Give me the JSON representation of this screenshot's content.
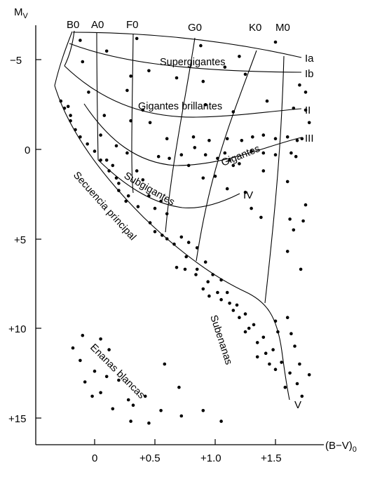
{
  "diagram": {
    "y_axis_title": "M",
    "y_axis_title_sub": "V",
    "x_axis_title": "(B−V)",
    "x_axis_title_sub": "0",
    "y_tick_labels": [
      "−5",
      "0",
      "+5",
      "+10",
      "+15"
    ],
    "x_tick_labels": [
      "0",
      "+0.5",
      "+1.0",
      "+1.5"
    ],
    "spectral_types": [
      "B0",
      "A0",
      "F0",
      "G0",
      "K0",
      "M0"
    ],
    "luminosity_classes": [
      "Ia",
      "Ib",
      "II",
      "III",
      "IV",
      "V"
    ],
    "regions": {
      "supergiants": "Supergigantes",
      "bright_giants": "Gigantes brillantes",
      "giants": "Gigantes",
      "subgiants": "Subgigantes",
      "main_sequence": "Secuencia principal",
      "subdwarfs": "Subenanas",
      "white_dwarfs": "Enanas blancas"
    }
  },
  "chart_data": {
    "type": "scatter",
    "xlabel": "(B−V)0",
    "ylabel": "Mv",
    "xlim": [
      -0.35,
      1.85
    ],
    "ylim": [
      -7,
      16.5
    ],
    "y_inverted": true,
    "grid": false,
    "series": [
      {
        "values": [
          [
            -0.12,
            -6.1
          ],
          [
            0.35,
            -6.2
          ],
          [
            0.88,
            -5.8
          ],
          [
            1.2,
            -5.2
          ],
          [
            1.5,
            -6.0
          ],
          [
            0.1,
            -5.5
          ],
          [
            0.3,
            -4.1
          ],
          [
            -0.1,
            -4.9
          ],
          [
            0.45,
            -4.4
          ],
          [
            0.68,
            -4.0
          ],
          [
            1.08,
            -4.6
          ],
          [
            0.9,
            -3.8
          ],
          [
            1.25,
            -4.2
          ],
          [
            1.7,
            -3.6
          ],
          [
            1.75,
            -3.2
          ],
          [
            1.75,
            -2.2
          ],
          [
            1.78,
            -1.5
          ],
          [
            -0.05,
            -3.2
          ],
          [
            0.27,
            -3.3
          ],
          [
            0.4,
            -2.2
          ],
          [
            0.92,
            -2.5
          ],
          [
            1.15,
            -2.1
          ],
          [
            1.43,
            -2.7
          ],
          [
            1.65,
            -2.3
          ],
          [
            -0.22,
            -2.4
          ],
          [
            -0.2,
            -1.6
          ],
          [
            0.08,
            -1.9
          ],
          [
            0.3,
            -1.6
          ],
          [
            0.46,
            -1.5
          ],
          [
            0.05,
            -0.8
          ],
          [
            0.18,
            -0.2
          ],
          [
            0.27,
            0.2
          ],
          [
            0.6,
            -0.6
          ],
          [
            0.82,
            -0.7
          ],
          [
            0.95,
            -0.5
          ],
          [
            1.1,
            -0.6
          ],
          [
            1.22,
            -0.5
          ],
          [
            1.31,
            -0.7
          ],
          [
            1.4,
            -0.8
          ],
          [
            1.5,
            -0.6
          ],
          [
            1.6,
            -0.7
          ],
          [
            1.68,
            -0.5
          ],
          [
            1.72,
            -0.6
          ],
          [
            0.83,
            -0.1
          ],
          [
            0.92,
            0.3
          ],
          [
            1.02,
            0.5
          ],
          [
            1.08,
            0.2
          ],
          [
            1.12,
            0.6
          ],
          [
            1.15,
            0.9
          ],
          [
            1.2,
            0.8
          ],
          [
            1.3,
            0.1
          ],
          [
            1.4,
            0.2
          ],
          [
            1.5,
            0.3
          ],
          [
            1.63,
            0.2
          ],
          [
            1.67,
            0.4
          ],
          [
            0.53,
            0.4
          ],
          [
            0.62,
            0.5
          ],
          [
            0.72,
            0.3
          ],
          [
            0.78,
            0.9
          ],
          [
            0.9,
            1.6
          ],
          [
            1.0,
            1.5
          ],
          [
            1.1,
            2.2
          ],
          [
            1.25,
            2.4
          ],
          [
            1.3,
            3.3
          ],
          [
            1.4,
            1.2
          ],
          [
            1.38,
            3.8
          ],
          [
            1.6,
            1.8
          ],
          [
            1.62,
            3.9
          ],
          [
            1.65,
            4.5
          ],
          [
            1.75,
            3.1
          ],
          [
            1.73,
            4.0
          ],
          [
            1.71,
            6.7
          ],
          [
            1.6,
            5.7
          ],
          [
            0.1,
            0.6
          ],
          [
            0.15,
            0.9
          ],
          [
            0.18,
            1.6
          ],
          [
            0.2,
            2.3
          ],
          [
            0.26,
            2.9
          ],
          [
            0.35,
            1.2
          ],
          [
            0.4,
            1.7
          ],
          [
            0.45,
            2.6
          ],
          [
            0.5,
            3.3
          ],
          [
            0.55,
            2.9
          ],
          [
            0.6,
            3.6
          ],
          [
            0.5,
            4.6
          ],
          [
            0.6,
            5.0
          ],
          [
            0.72,
            4.9
          ],
          [
            0.78,
            5.2
          ],
          [
            0.85,
            5.5
          ],
          [
            0.92,
            6.3
          ],
          [
            0.98,
            7.0
          ],
          [
            1.05,
            7.3
          ],
          [
            1.1,
            8.0
          ],
          [
            1.18,
            8.7
          ],
          [
            1.25,
            9.2
          ],
          [
            1.32,
            9.8
          ],
          [
            1.4,
            10.5
          ],
          [
            1.48,
            11.2
          ],
          [
            1.55,
            11.9
          ],
          [
            1.62,
            12.5
          ],
          [
            1.68,
            13.1
          ],
          [
            1.72,
            13.8
          ],
          [
            1.78,
            12.6
          ],
          [
            -0.28,
            -2.7
          ],
          [
            -0.25,
            -2.3
          ],
          [
            -0.2,
            -1.9
          ],
          [
            -0.16,
            -1.1
          ],
          [
            -0.12,
            -0.7
          ],
          [
            -0.06,
            -0.3
          ],
          [
            0.0,
            0.1
          ],
          [
            0.05,
            0.6
          ],
          [
            0.12,
            1.2
          ],
          [
            0.2,
            1.9
          ],
          [
            0.28,
            2.6
          ],
          [
            0.36,
            3.2
          ],
          [
            0.46,
            4.1
          ],
          [
            0.56,
            4.8
          ],
          [
            0.66,
            5.3
          ],
          [
            0.76,
            6.0
          ],
          [
            0.85,
            6.7
          ],
          [
            0.94,
            7.4
          ],
          [
            1.02,
            8.0
          ],
          [
            1.12,
            8.6
          ],
          [
            1.2,
            9.4
          ],
          [
            1.28,
            10.0
          ],
          [
            1.35,
            10.8
          ],
          [
            1.42,
            11.4
          ],
          [
            1.5,
            12.3
          ],
          [
            0.68,
            6.6
          ],
          [
            0.75,
            6.7
          ],
          [
            0.84,
            7.0
          ],
          [
            0.9,
            7.8
          ],
          [
            0.95,
            8.2
          ],
          [
            1.05,
            8.4
          ],
          [
            1.15,
            9.0
          ],
          [
            1.25,
            10.2
          ],
          [
            1.35,
            11.6
          ],
          [
            1.45,
            12.0
          ],
          [
            1.5,
            9.6
          ],
          [
            1.52,
            10.2
          ],
          [
            1.6,
            9.4
          ],
          [
            1.63,
            10.3
          ],
          [
            1.66,
            11.0
          ],
          [
            1.7,
            12.0
          ],
          [
            1.58,
            13.3
          ],
          [
            -0.18,
            11.1
          ],
          [
            -0.1,
            10.4
          ],
          [
            0.05,
            10.6
          ],
          [
            0.12,
            11.2
          ],
          [
            -0.12,
            11.8
          ],
          [
            0.0,
            12.4
          ],
          [
            0.1,
            12.7
          ],
          [
            0.2,
            12.9
          ],
          [
            -0.08,
            13.0
          ],
          [
            0.05,
            13.6
          ],
          [
            -0.02,
            13.8
          ],
          [
            0.15,
            14.5
          ],
          [
            0.28,
            14.0
          ],
          [
            0.32,
            14.3
          ],
          [
            0.3,
            15.2
          ],
          [
            0.42,
            13.8
          ],
          [
            0.45,
            15.3
          ],
          [
            0.55,
            14.6
          ],
          [
            0.7,
            13.3
          ],
          [
            0.72,
            14.9
          ],
          [
            0.9,
            14.6
          ],
          [
            1.05,
            15.2
          ],
          [
            0.58,
            12.0
          ]
        ]
      }
    ]
  }
}
